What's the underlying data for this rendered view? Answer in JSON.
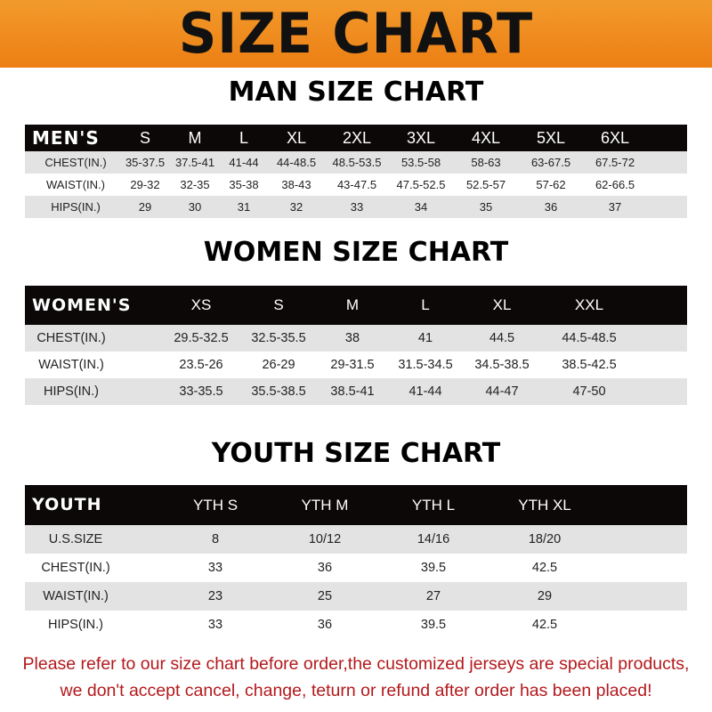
{
  "title": "SIZE CHART",
  "men": {
    "title": "MAN SIZE CHART",
    "header": [
      "MEN'S",
      "S",
      "M",
      "L",
      "XL",
      "2XL",
      "3XL",
      "4XL",
      "5XL",
      "6XL"
    ],
    "rows": [
      [
        "CHEST(IN.)",
        "35-37.5",
        "37.5-41",
        "41-44",
        "44-48.5",
        "48.5-53.5",
        "53.5-58",
        "58-63",
        "63-67.5",
        "67.5-72"
      ],
      [
        "WAIST(IN.)",
        "29-32",
        "32-35",
        "35-38",
        "38-43",
        "43-47.5",
        "47.5-52.5",
        "52.5-57",
        "57-62",
        "62-66.5"
      ],
      [
        "HIPS(IN.)",
        "29",
        "30",
        "31",
        "32",
        "33",
        "34",
        "35",
        "36",
        "37"
      ]
    ]
  },
  "women": {
    "title": "WOMEN SIZE CHART",
    "header": [
      "WOMEN'S",
      "XS",
      "S",
      "M",
      "L",
      "XL",
      "XXL"
    ],
    "rows": [
      [
        "CHEST(IN.)",
        "29.5-32.5",
        "32.5-35.5",
        "38",
        "41",
        "44.5",
        "44.5-48.5"
      ],
      [
        "WAIST(IN.)",
        "23.5-26",
        "26-29",
        "29-31.5",
        "31.5-34.5",
        "34.5-38.5",
        "38.5-42.5"
      ],
      [
        "HIPS(IN.)",
        "33-35.5",
        "35.5-38.5",
        "38.5-41",
        "41-44",
        "44-47",
        "47-50"
      ]
    ]
  },
  "youth": {
    "title": "YOUTH SIZE CHART",
    "header": [
      "YOUTH",
      "YTH S",
      "YTH M",
      "YTH L",
      "YTH XL"
    ],
    "rows": [
      [
        "U.S.SIZE",
        "8",
        "10/12",
        "14/16",
        "18/20"
      ],
      [
        "CHEST(IN.)",
        "33",
        "36",
        "39.5",
        "42.5"
      ],
      [
        "WAIST(IN.)",
        "23",
        "25",
        "27",
        "29"
      ],
      [
        "HIPS(IN.)",
        "33",
        "36",
        "39.5",
        "42.5"
      ]
    ]
  },
  "notice": [
    "Please refer to our size chart before order,the customized jerseys are special products,",
    "we don't accept cancel, change, teturn or refund after order has been placed!"
  ],
  "colors": {
    "banner": "#ef8a1f",
    "header_bg": "#0c0808",
    "stripe": "#e3e3e3",
    "notice": "#b3191c"
  }
}
